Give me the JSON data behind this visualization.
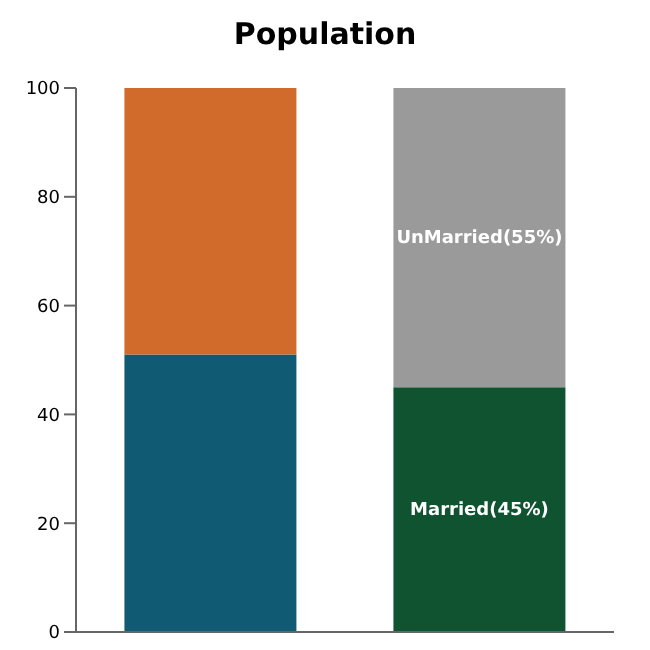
{
  "chart_data": {
    "type": "bar",
    "title": "Population",
    "stacked": true,
    "categories": [
      null,
      null
    ],
    "series": [
      {
        "colors": [
          "#115a73",
          "#0f5331"
        ],
        "values": [
          51,
          45
        ],
        "value_labels": [
          null,
          "Married(45%)"
        ]
      },
      {
        "colors": [
          "#d06b2c",
          "#9a9a9a"
        ],
        "values": [
          49,
          55
        ],
        "value_labels": [
          null,
          "UnMarried(55%)"
        ]
      }
    ],
    "ylim": [
      0,
      100
    ],
    "yticks": [
      0,
      20,
      40,
      60,
      80,
      100
    ],
    "grid": false,
    "legend": false
  }
}
